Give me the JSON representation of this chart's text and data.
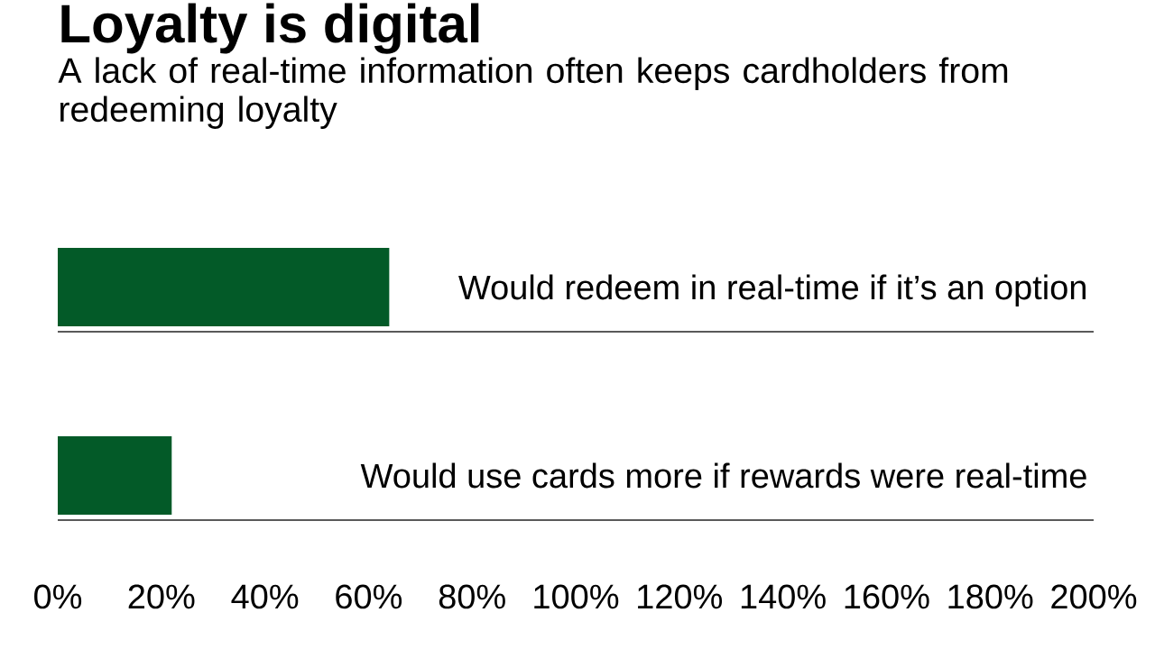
{
  "chart_data": [
    {
      "type": "bar",
      "orientation": "horizontal",
      "title": "Loyalty is digital",
      "subtitle": "A lack of real-time information often keeps cardholders from redeeming loyalty",
      "categories": [
        "Would redeem in real-time if it’s an option"
      ],
      "values": [
        64
      ],
      "color": "#035a28",
      "xlim": [
        0,
        200
      ],
      "tick_labels": "y"
    },
    {
      "type": "bar",
      "orientation": "horizontal",
      "categories": [
        "Would use cards more if rewards were real-time"
      ],
      "values": [
        22
      ],
      "color": "#035a28",
      "xlim": [
        0,
        200
      ],
      "xticks": [
        {
          "value": 0,
          "label": "0%"
        },
        {
          "value": 20,
          "label": "20%"
        },
        {
          "value": 40,
          "label": "40%"
        },
        {
          "value": 60,
          "label": "60%"
        },
        {
          "value": 80,
          "label": "80%"
        },
        {
          "value": 100,
          "label": "100%"
        },
        {
          "value": 120,
          "label": "120%"
        },
        {
          "value": 140,
          "label": "140%"
        },
        {
          "value": 160,
          "label": "160%"
        },
        {
          "value": 180,
          "label": "180%"
        },
        {
          "value": 200,
          "label": "200%"
        }
      ]
    }
  ]
}
